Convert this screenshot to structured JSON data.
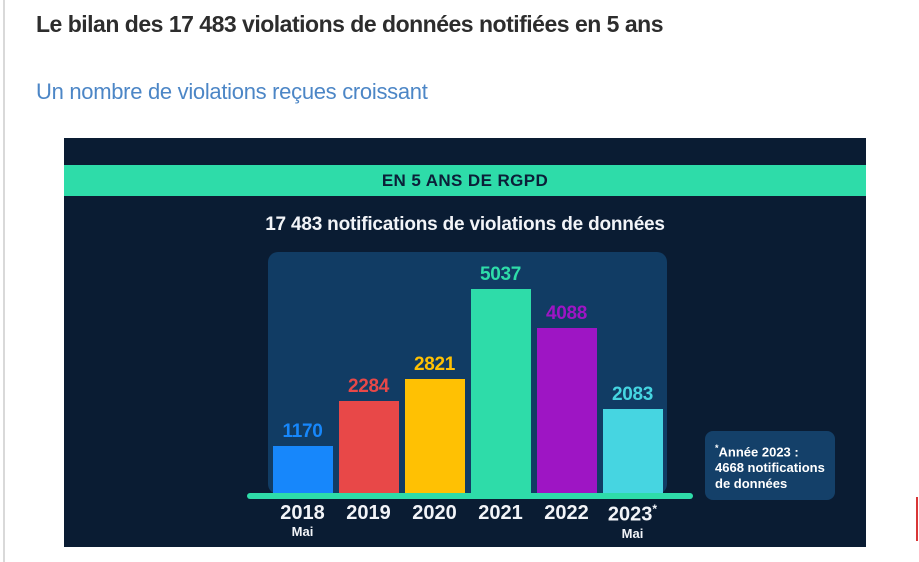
{
  "page": {
    "title": "Le bilan des 17 483 violations de données notifiées en 5 ans",
    "subtitle": "Un nombre de violations reçues croissant"
  },
  "colors": {
    "page_background": "#ffffff",
    "title_text": "#2d2d2d",
    "subtitle_text": "#4c86c6",
    "infographic_background": "#0a1c33",
    "banner_green": "#2edca9",
    "panel_navy": "#113c64",
    "axis_green": "#2edca9",
    "note_background": "#144069",
    "right_edge_marker": "#d93636"
  },
  "chart_data": {
    "type": "bar",
    "banner": "EN 5 ANS DE RGPD",
    "title": "17 483 notifications de violations de données",
    "categories": [
      "2018",
      "2019",
      "2020",
      "2021",
      "2022",
      "2023"
    ],
    "category_superscripts": [
      "",
      "",
      "",
      "",
      "",
      "*"
    ],
    "category_subtexts": [
      "Mai",
      "",
      "",
      "",
      "",
      "Mai"
    ],
    "values": [
      1170,
      2284,
      2821,
      5037,
      4088,
      2083
    ],
    "bar_colors": [
      "#1787fb",
      "#e84848",
      "#ffc103",
      "#2edca9",
      "#9e15c4",
      "#46d5e1"
    ],
    "ylim": [
      0,
      5200
    ],
    "grid": false,
    "legend": "none",
    "annotation": {
      "sup": "*",
      "line1": "Année 2023 :",
      "line2": "4668 notifications",
      "line3": "de données"
    }
  }
}
